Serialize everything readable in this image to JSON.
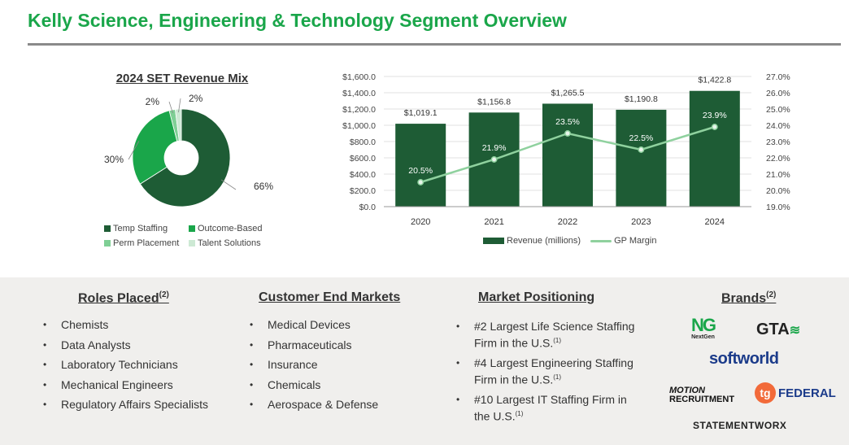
{
  "page": {
    "title": "Kelly Science, Engineering & Technology Segment Overview"
  },
  "chart_data": [
    {
      "type": "pie",
      "title": "2024 SET Revenue Mix",
      "style": "donut",
      "slices": [
        {
          "label": "Temp Staffing",
          "value": 66,
          "display": "66%",
          "color": "#1e5c35"
        },
        {
          "label": "Outcome-Based",
          "value": 30,
          "display": "30%",
          "color": "#1aa64a"
        },
        {
          "label": "Perm Placement",
          "value": 2,
          "display": "2%",
          "color": "#7fcf95"
        },
        {
          "label": "Talent Solutions",
          "value": 2,
          "display": "2%",
          "color": "#cde9d4"
        }
      ],
      "legend_placement": "bottom"
    },
    {
      "type": "bar",
      "categories": [
        "2020",
        "2021",
        "2022",
        "2023",
        "2024"
      ],
      "series": [
        {
          "name": "Revenue (millions)",
          "type": "bar",
          "axis": "left",
          "values": [
            1019.1,
            1156.8,
            1265.5,
            1190.8,
            1422.8
          ],
          "labels": [
            "$1,019.1",
            "$1,156.8",
            "$1,265.5",
            "$1,190.8",
            "$1,422.8"
          ],
          "color": "#1e5c35"
        },
        {
          "name": "GP Margin",
          "type": "line",
          "axis": "right",
          "values": [
            20.5,
            21.9,
            23.5,
            22.5,
            23.9
          ],
          "labels": [
            "20.5%",
            "21.9%",
            "23.5%",
            "22.5%",
            "23.9%"
          ],
          "color": "#8fd19e"
        }
      ],
      "ylim": [
        0,
        1600
      ],
      "yticks": [
        "$0.0",
        "$200.0",
        "$400.0",
        "$600.0",
        "$800.0",
        "$1,000.0",
        "$1,200.0",
        "$1,400.0",
        "$1,600.0"
      ],
      "y2lim": [
        19,
        27
      ],
      "y2ticks": [
        "19.0%",
        "20.0%",
        "21.0%",
        "22.0%",
        "23.0%",
        "24.0%",
        "25.0%",
        "26.0%",
        "27.0%"
      ],
      "grid": true,
      "legend_placement": "bottom"
    }
  ],
  "sections": {
    "roles": {
      "title": "Roles Placed",
      "title_sup": "(2)",
      "items": [
        "Chemists",
        "Data Analysts",
        "Laboratory Technicians",
        "Mechanical Engineers",
        "Regulatory Affairs Specialists"
      ]
    },
    "markets": {
      "title": "Customer End Markets",
      "items": [
        "Medical Devices",
        "Pharmaceuticals",
        "Insurance",
        "Chemicals",
        "Aerospace & Defense"
      ]
    },
    "positioning": {
      "title": "Market Positioning",
      "items": [
        {
          "text": "#2 Largest Life Science Staffing Firm in the U.S.",
          "sup": "(1)"
        },
        {
          "text": "#4 Largest Engineering Staffing Firm in the U.S.",
          "sup": "(1)"
        },
        {
          "text": "#10 Largest IT Staffing Firm in the U.S.",
          "sup": "(1)"
        }
      ]
    },
    "brands": {
      "title": "Brands",
      "title_sup": "(2)",
      "logos": {
        "nextgen_mark": "NG",
        "nextgen_name": "NextGen",
        "gta": "GTA",
        "softworld": "softworld",
        "motion_top": "MOTION",
        "motion_bottom": "RECRUITMENT",
        "tg": "tg",
        "federal": "FEDERAL",
        "statementworx": "STATEMENTWORX"
      }
    }
  }
}
